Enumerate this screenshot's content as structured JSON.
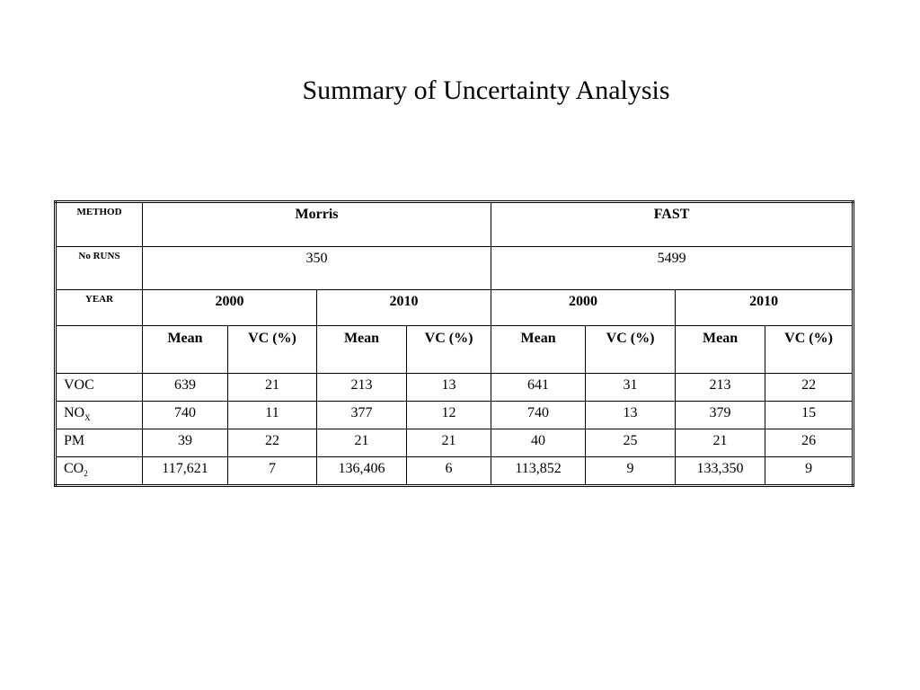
{
  "title": "Summary of Uncertainty Analysis",
  "table": {
    "method_label": "METHOD",
    "methods": [
      "Morris",
      "FAST"
    ],
    "runs_label": "No RUNS",
    "runs": [
      "350",
      "5499"
    ],
    "year_label": "YEAR",
    "years": [
      "2000",
      "2010",
      "2000",
      "2010"
    ],
    "stats": [
      "Mean",
      "VC (%)",
      "Mean",
      "VC (%)",
      "Mean",
      "VC (%)",
      "Mean",
      "VC (%)"
    ],
    "rows": [
      {
        "label": "VOC",
        "values": [
          "639",
          "21",
          "213",
          "13",
          "641",
          "31",
          "213",
          "22"
        ]
      },
      {
        "label": "NO",
        "sub": "X",
        "values": [
          "740",
          "11",
          "377",
          "12",
          "740",
          "13",
          "379",
          "15"
        ]
      },
      {
        "label": "PM",
        "values": [
          "39",
          "22",
          "21",
          "21",
          "40",
          "25",
          "21",
          "26"
        ]
      },
      {
        "label": "CO",
        "sub": "2",
        "values": [
          "117,621",
          "7",
          "136,406",
          "6",
          "113,852",
          "9",
          "133,350",
          "9"
        ]
      }
    ]
  }
}
